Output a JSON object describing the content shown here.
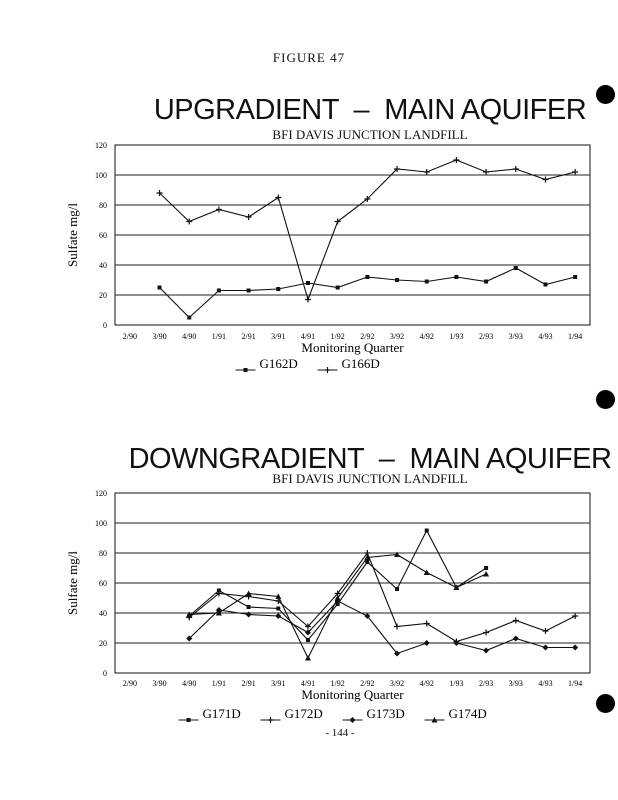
{
  "page": {
    "figure_label": "FIGURE 47",
    "page_number": "- 144 -"
  },
  "chart_data": [
    {
      "type": "line",
      "title": "UPGRADIENT  –  MAIN AQUIFER",
      "subtitle": "BFI DAVIS JUNCTION LANDFILL",
      "xlabel": "Monitoring Quarter",
      "ylabel": "Sulfate mg/l",
      "ylim": [
        0,
        120
      ],
      "yticks": [
        0,
        20,
        40,
        60,
        80,
        100,
        120
      ],
      "grid": true,
      "legend_position": "bottom",
      "categories": [
        "2/90",
        "3/90",
        "4/90",
        "1/91",
        "2/91",
        "3/91",
        "4/91",
        "1/92",
        "2/92",
        "3/92",
        "4/92",
        "1/93",
        "2/93",
        "3/93",
        "4/93",
        "1/94"
      ],
      "series": [
        {
          "name": "G162D",
          "marker": "square",
          "values": [
            null,
            25,
            5,
            23,
            23,
            24,
            28,
            25,
            32,
            30,
            29,
            32,
            29,
            38,
            27,
            32
          ]
        },
        {
          "name": "G166D",
          "marker": "plus",
          "values": [
            null,
            88,
            69,
            77,
            72,
            85,
            17,
            69,
            84,
            104,
            102,
            110,
            102,
            104,
            97,
            102
          ]
        }
      ]
    },
    {
      "type": "line",
      "title": "DOWNGRADIENT  –  MAIN AQUIFER",
      "subtitle": "BFI DAVIS JUNCTION LANDFILL",
      "xlabel": "Monitoring Quarter",
      "ylabel": "Sulfate mg/l",
      "ylim": [
        0,
        120
      ],
      "yticks": [
        0,
        20,
        40,
        60,
        80,
        100,
        120
      ],
      "grid": true,
      "legend_position": "bottom",
      "categories": [
        "2/90",
        "3/90",
        "4/90",
        "1/91",
        "2/91",
        "3/91",
        "4/91",
        "1/92",
        "2/92",
        "3/92",
        "4/92",
        "1/93",
        "2/93",
        "3/93",
        "4/93",
        "1/94"
      ],
      "series": [
        {
          "name": "G171D",
          "marker": "square",
          "values": [
            null,
            null,
            38,
            55,
            44,
            43,
            22,
            46,
            74,
            56,
            95,
            57,
            70,
            null,
            null,
            null
          ]
        },
        {
          "name": "G172D",
          "marker": "plus",
          "values": [
            null,
            null,
            37,
            53,
            51,
            48,
            31,
            53,
            80,
            31,
            33,
            21,
            27,
            35,
            28,
            38
          ]
        },
        {
          "name": "G173D",
          "marker": "diamond",
          "values": [
            null,
            null,
            23,
            42,
            39,
            38,
            27,
            48,
            38,
            13,
            20,
            20,
            15,
            23,
            17,
            17
          ]
        },
        {
          "name": "G174D",
          "marker": "triangle",
          "values": [
            null,
            null,
            39,
            40,
            53,
            51,
            10,
            50,
            77,
            79,
            67,
            57,
            66,
            null,
            null,
            null
          ]
        }
      ]
    }
  ]
}
